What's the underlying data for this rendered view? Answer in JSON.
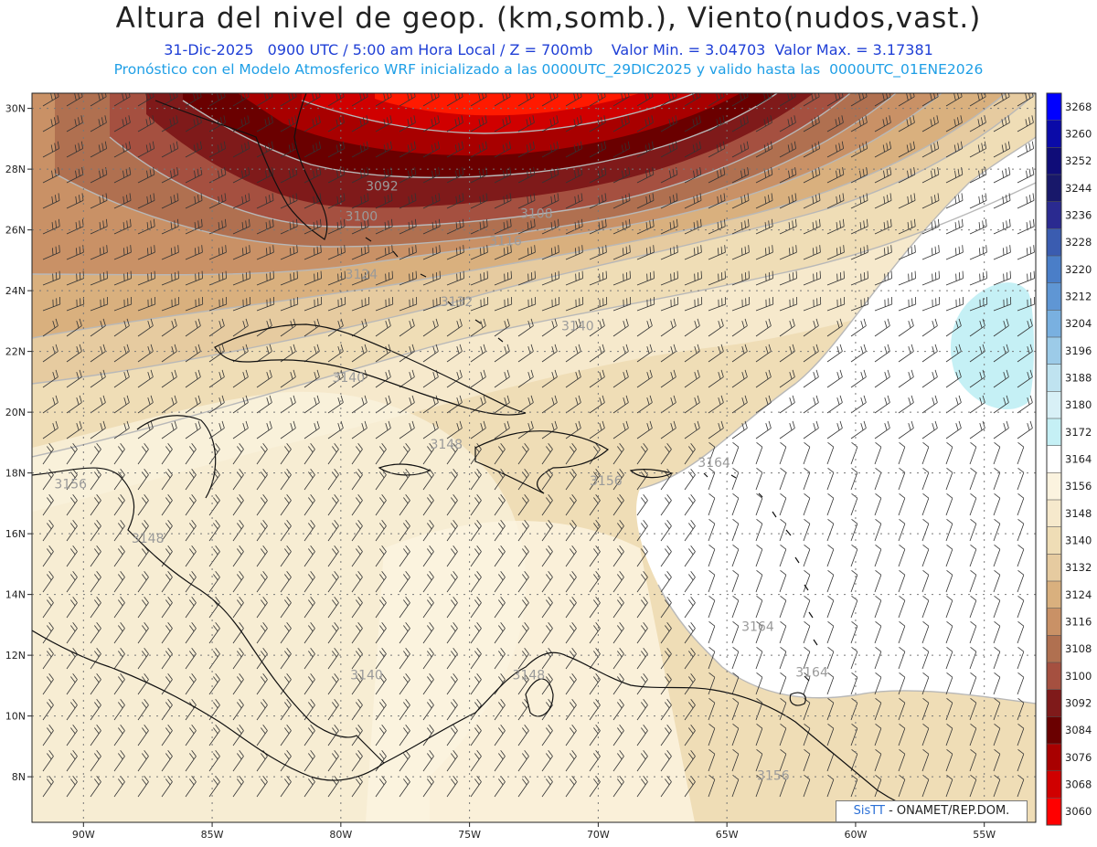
{
  "header": {
    "title": "Altura del nivel de geop. (km,somb.), Viento(nudos,vast.)",
    "subtitle_line1": "31-Dic-2025   0900 UTC / 5:00 am Hora Local / Z = 700mb    Valor Min. = 3.04703  Valor Max. = 3.17381",
    "subtitle_line2": "Pronóstico con el Modelo Atmosferico WRF inicializado a las 0000UTC_29DIC2025 y valido hasta las  0000UTC_01ENE2026"
  },
  "map": {
    "lon_range": [
      -92,
      -53
    ],
    "lat_range": [
      6.5,
      30.5
    ],
    "lat_ticks": [
      "8N",
      "10N",
      "12N",
      "14N",
      "16N",
      "18N",
      "20N",
      "22N",
      "24N",
      "26N",
      "28N",
      "30N"
    ],
    "lon_ticks": [
      "90W",
      "85W",
      "80W",
      "75W",
      "70W",
      "65W",
      "60W",
      "55W"
    ],
    "contour_labels": [
      {
        "text": "3092",
        "lon": -78.4,
        "lat": 27.3
      },
      {
        "text": "3100",
        "lon": -79.2,
        "lat": 26.3
      },
      {
        "text": "3108",
        "lon": -72.4,
        "lat": 26.4
      },
      {
        "text": "3116",
        "lon": -73.6,
        "lat": 25.5
      },
      {
        "text": "3124",
        "lon": -79.2,
        "lat": 24.4
      },
      {
        "text": "3132",
        "lon": -75.5,
        "lat": 23.5
      },
      {
        "text": "3140",
        "lon": -70.8,
        "lat": 22.7
      },
      {
        "text": "3140",
        "lon": -79.7,
        "lat": 21.0
      },
      {
        "text": "3148",
        "lon": -75.9,
        "lat": 18.8
      },
      {
        "text": "3164",
        "lon": -65.5,
        "lat": 18.2
      },
      {
        "text": "3156",
        "lon": -90.5,
        "lat": 17.5
      },
      {
        "text": "3156",
        "lon": -69.7,
        "lat": 17.6
      },
      {
        "text": "3148",
        "lon": -87.5,
        "lat": 15.7
      },
      {
        "text": "3164",
        "lon": -63.8,
        "lat": 12.8
      },
      {
        "text": "3164",
        "lon": -61.7,
        "lat": 11.3
      },
      {
        "text": "3140",
        "lon": -79.0,
        "lat": 11.2
      },
      {
        "text": "3148",
        "lon": -72.7,
        "lat": 11.2
      },
      {
        "text": "3156",
        "lon": -63.2,
        "lat": 7.9
      }
    ]
  },
  "colorbar": {
    "levels": [
      "3268",
      "3260",
      "3252",
      "3244",
      "3236",
      "3228",
      "3220",
      "3212",
      "3204",
      "3196",
      "3188",
      "3180",
      "3172",
      "3164",
      "3156",
      "3148",
      "3140",
      "3132",
      "3124",
      "3116",
      "3108",
      "3100",
      "3092",
      "3084",
      "3076",
      "3068",
      "3060"
    ],
    "colors": [
      "#0000ff",
      "#0a0aa8",
      "#0f0c78",
      "#18186a",
      "#2a2a90",
      "#3a5cb0",
      "#4a7ec8",
      "#5f96d4",
      "#79b0e0",
      "#9ccbe8",
      "#bfe3f0",
      "#d8f0f6",
      "#c5f0f5",
      "#ffffff",
      "#fbf3df",
      "#f6e9cc",
      "#efddb6",
      "#e6cba0",
      "#d9b07e",
      "#c99166",
      "#b07050",
      "#a55040",
      "#7f1a1a",
      "#6a0000",
      "#a80000",
      "#d00000",
      "#ff0000"
    ]
  },
  "credit": {
    "brand": "SisTT",
    "text": "- ONAMET/REP.DOM."
  }
}
